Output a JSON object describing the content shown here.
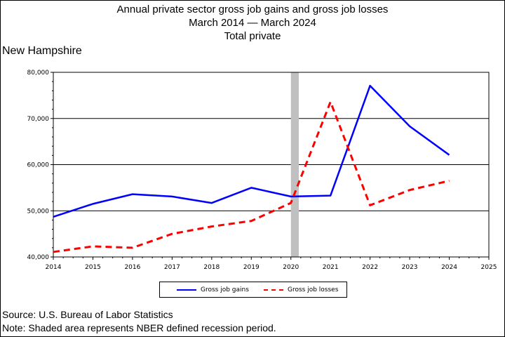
{
  "title": {
    "line1": "Annual private sector gross job gains and gross job losses",
    "line2": "March 2014 — March 2024",
    "line3": "Total private"
  },
  "region": "New Hampshire",
  "footer": {
    "source": "Source: U.S. Bureau of Labor Statistics",
    "note": "Note: Shaded area represents NBER defined recession period."
  },
  "chart_data": {
    "type": "line",
    "title": "Annual private sector gross job gains and gross job losses",
    "subtitle": "March 2014 — March 2024, Total private",
    "x_ticks": [
      2014,
      2015,
      2016,
      2017,
      2018,
      2019,
      2020,
      2021,
      2022,
      2023,
      2024,
      2025
    ],
    "xlim": [
      2014,
      2025
    ],
    "ylim": [
      40000,
      80000
    ],
    "y_ticks": [
      40000,
      50000,
      60000,
      70000,
      80000
    ],
    "y_tick_labels": [
      "40,000",
      "50,000",
      "60,000",
      "70,000",
      "80,000"
    ],
    "grid": "horizontal",
    "legend_position": "bottom",
    "recession_shading": {
      "x_start": 2020.0,
      "x_end": 2020.2,
      "color": "#c0c0c0"
    },
    "series": [
      {
        "name": "Gross job gains",
        "color": "#0000ff",
        "style": "solid",
        "x": [
          2014,
          2015,
          2016,
          2017,
          2018,
          2019,
          2020,
          2021,
          2022,
          2023,
          2024
        ],
        "values": [
          48700,
          51500,
          53600,
          53100,
          51700,
          55000,
          53100,
          53300,
          77100,
          68300,
          62100
        ]
      },
      {
        "name": "Gross job losses",
        "color": "#ff0000",
        "style": "dashed",
        "x": [
          2014,
          2015,
          2016,
          2017,
          2018,
          2019,
          2020,
          2021,
          2022,
          2023,
          2024
        ],
        "values": [
          41100,
          42300,
          42000,
          45000,
          46600,
          47800,
          51700,
          73600,
          51200,
          54500,
          56500
        ]
      }
    ]
  }
}
